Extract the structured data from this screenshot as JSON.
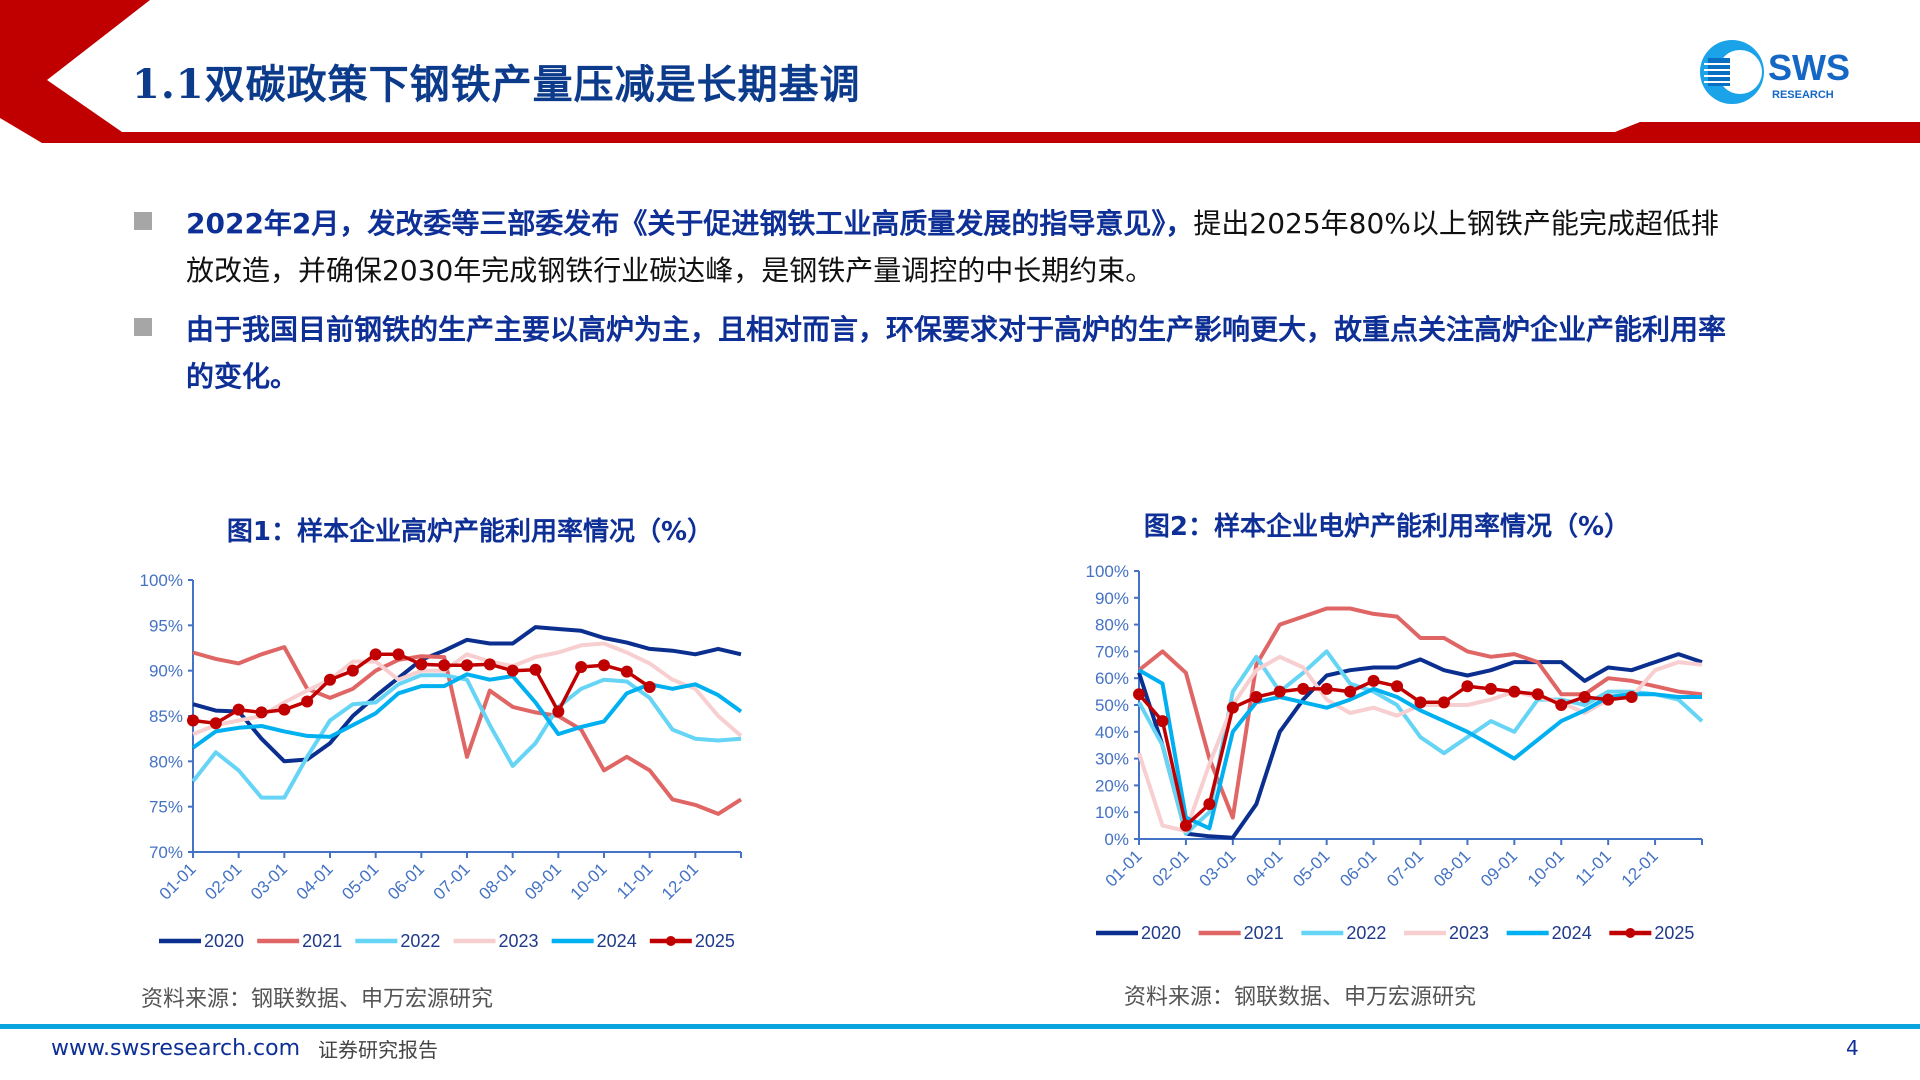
{
  "header": {
    "title": "1.1双碳政策下钢铁产量压减是长期基调",
    "logo_text": "SWS",
    "logo_subtext": "RESEARCH",
    "accent_color": "#c00000"
  },
  "bullets": [
    {
      "bold": "2022年2月，发改委等三部委发布《关于促进钢铁工业高质量发展的指导意见》，",
      "normal": "提出2025年80%以上钢铁产能完成超低排放改造，并确保2030年完成钢铁行业碳达峰，是钢铁产量调控的中长期约束。"
    },
    {
      "bold": "由于我国目前钢铁的生产主要以高炉为主，且相对而言，环保要求对于高炉的生产影响更大，故重点关注高炉企业产能利用率的变化。",
      "normal": ""
    }
  ],
  "footer": {
    "url": "www.swsresearch.com",
    "label": "证券研究报告",
    "page": "4"
  },
  "chart_data": [
    {
      "type": "line",
      "title": "图1：样本企业高炉产能利用率情况（%）",
      "source": "资料来源：钢联数据、申万宏源研究",
      "x_tick_labels": [
        "01-01",
        "02-01",
        "03-01",
        "04-01",
        "05-01",
        "06-01",
        "07-01",
        "08-01",
        "09-01",
        "10-01",
        "11-01",
        "12-01"
      ],
      "x": [
        "01-01",
        "01-15",
        "02-01",
        "02-15",
        "03-01",
        "03-15",
        "04-01",
        "04-15",
        "05-01",
        "05-15",
        "06-01",
        "06-15",
        "07-01",
        "07-15",
        "08-01",
        "08-15",
        "09-01",
        "09-15",
        "10-01",
        "10-15",
        "11-01",
        "11-15",
        "12-01",
        "12-15",
        "12-31"
      ],
      "y_tick_labels": [
        "70%",
        "75%",
        "80%",
        "85%",
        "90%",
        "95%",
        "100%"
      ],
      "ylim": [
        70,
        100
      ],
      "legend": "bottom",
      "series": [
        {
          "name": "2020",
          "color": "#0b2f8f",
          "values": [
            86.3,
            85.6,
            85.5,
            82.5,
            80.0,
            80.2,
            82.0,
            85.0,
            87.2,
            89.2,
            91.2,
            92.2,
            93.4,
            93.0,
            93.0,
            94.8,
            94.6,
            94.4,
            93.6,
            93.1,
            92.4,
            92.2,
            91.8,
            92.4,
            91.8
          ]
        },
        {
          "name": "2021",
          "color": "#e06666",
          "values": [
            92.0,
            91.3,
            90.8,
            91.8,
            92.6,
            88.0,
            87.0,
            88.0,
            90.0,
            91.2,
            91.6,
            91.5,
            80.5,
            87.8,
            86.0,
            85.4,
            85.0,
            83.5,
            79.0,
            80.5,
            79.0,
            75.8,
            75.2,
            74.2,
            75.8
          ]
        },
        {
          "name": "2022",
          "color": "#66d4f5",
          "values": [
            77.8,
            81.0,
            79.0,
            76.0,
            76.0,
            80.5,
            84.5,
            86.3,
            86.5,
            88.5,
            89.5,
            89.5,
            89.0,
            84.0,
            79.5,
            82.0,
            86.0,
            88.0,
            89.0,
            88.8,
            87.0,
            83.5,
            82.5,
            82.3,
            82.5
          ]
        },
        {
          "name": "2023",
          "color": "#f8cfd0",
          "values": [
            83.0,
            84.0,
            84.5,
            85.0,
            86.5,
            87.8,
            89.0,
            91.0,
            91.0,
            89.0,
            90.0,
            90.0,
            91.8,
            91.0,
            90.5,
            91.5,
            92.0,
            92.8,
            93.0,
            92.0,
            90.8,
            89.0,
            88.0,
            85.0,
            82.8
          ]
        },
        {
          "name": "2024",
          "color": "#00b0f0",
          "values": [
            81.5,
            83.3,
            83.7,
            83.9,
            83.3,
            82.8,
            82.7,
            84.0,
            85.3,
            87.5,
            88.3,
            88.3,
            89.6,
            89.0,
            89.4,
            86.5,
            83.0,
            83.8,
            84.4,
            87.5,
            88.5,
            88.0,
            88.5,
            87.3,
            85.5
          ]
        },
        {
          "name": "2025",
          "color": "#c00000",
          "markers": true,
          "values": [
            84.5,
            84.2,
            85.7,
            85.4,
            85.7,
            86.6,
            89.0,
            90.0,
            91.8,
            91.8,
            90.7,
            90.6,
            90.6,
            90.7,
            90.0,
            90.1,
            85.5,
            90.4,
            90.6,
            89.9,
            88.2,
            null,
            null,
            null,
            null
          ]
        }
      ]
    },
    {
      "type": "line",
      "title": "图2：样本企业电炉产能利用率情况（%）",
      "source": "资料来源：钢联数据、申万宏源研究",
      "x_tick_labels": [
        "01-01",
        "02-01",
        "03-01",
        "04-01",
        "05-01",
        "06-01",
        "07-01",
        "08-01",
        "09-01",
        "10-01",
        "11-01",
        "12-01"
      ],
      "x": [
        "01-01",
        "01-15",
        "02-01",
        "02-15",
        "03-01",
        "03-15",
        "04-01",
        "04-15",
        "05-01",
        "05-15",
        "06-01",
        "06-15",
        "07-01",
        "07-15",
        "08-01",
        "08-15",
        "09-01",
        "09-15",
        "10-01",
        "10-15",
        "11-01",
        "11-15",
        "12-01",
        "12-15",
        "12-31"
      ],
      "y_tick_labels": [
        "0%",
        "10%",
        "20%",
        "30%",
        "40%",
        "50%",
        "60%",
        "70%",
        "80%",
        "90%",
        "100%"
      ],
      "ylim": [
        0,
        100
      ],
      "legend": "bottom",
      "series": [
        {
          "name": "2020",
          "color": "#0b2f8f",
          "values": [
            62,
            35,
            2,
            1,
            0.5,
            13,
            40,
            52,
            61,
            63,
            64,
            64,
            67,
            63,
            61,
            63,
            66,
            66,
            66,
            59,
            64,
            63,
            66,
            69,
            66
          ]
        },
        {
          "name": "2021",
          "color": "#e06666",
          "values": [
            63,
            70,
            62,
            30,
            8,
            65,
            80,
            83,
            86,
            86,
            84,
            83,
            75,
            75,
            70,
            68,
            69,
            66,
            54,
            54,
            60,
            59,
            57,
            55,
            54
          ]
        },
        {
          "name": "2022",
          "color": "#66d4f5",
          "values": [
            51,
            35,
            2,
            10,
            55,
            68,
            55,
            62,
            70,
            58,
            55,
            50,
            38,
            32,
            38,
            44,
            40,
            52,
            52,
            50,
            55,
            55,
            54,
            52,
            44
          ]
        },
        {
          "name": "2023",
          "color": "#f8cfd0",
          "values": [
            32,
            5,
            3,
            28,
            50,
            63,
            68,
            64,
            52,
            47,
            49,
            46,
            50,
            50,
            50,
            52,
            55,
            53,
            51,
            47,
            52,
            53,
            63,
            66,
            65
          ]
        },
        {
          "name": "2024",
          "color": "#00b0f0",
          "values": [
            63,
            58,
            8,
            4,
            40,
            51,
            53,
            51,
            49,
            52,
            56,
            53,
            48,
            44,
            40,
            35,
            30,
            37,
            44,
            48,
            53,
            54,
            54,
            53,
            53
          ]
        },
        {
          "name": "2025",
          "color": "#c00000",
          "markers": true,
          "values": [
            54,
            44,
            5,
            13,
            49,
            53,
            55,
            56,
            56,
            55,
            59,
            57,
            51,
            51,
            57,
            56,
            55,
            54,
            50,
            53,
            52,
            53,
            null,
            null,
            null
          ]
        }
      ]
    }
  ]
}
